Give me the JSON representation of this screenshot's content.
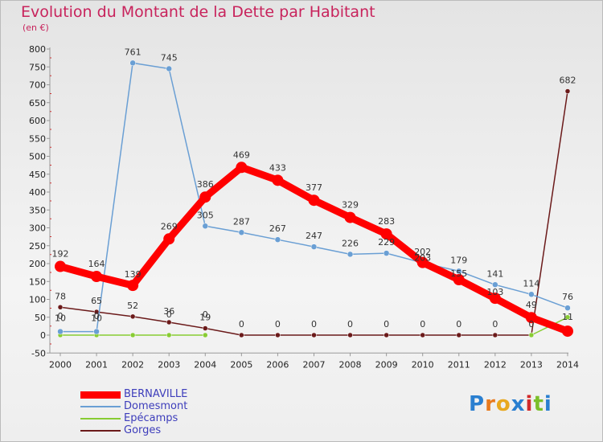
{
  "title": "Evolution du Montant de la Dette par Habitant",
  "subtitle": "(en €)",
  "logo": {
    "text": "Proxiti"
  },
  "chart_data": {
    "type": "line",
    "x": [
      "2000",
      "2001",
      "2002",
      "2003",
      "2004",
      "2005",
      "2006",
      "2007",
      "2008",
      "2009",
      "2010",
      "2011",
      "2012",
      "2013",
      "2014"
    ],
    "ylim": [
      -50,
      800
    ],
    "yticks": [
      -50,
      0,
      50,
      100,
      150,
      200,
      250,
      300,
      350,
      400,
      450,
      500,
      550,
      600,
      650,
      700,
      750,
      800
    ],
    "grid": false,
    "legend_position": "bottom-left",
    "series": [
      {
        "name": "BERNAVILLE",
        "color": "#ff0000",
        "stroke": 9,
        "marker": 7,
        "values": [
          192,
          164,
          139,
          269,
          386,
          469,
          433,
          377,
          329,
          283,
          203,
          155,
          103,
          49,
          11
        ],
        "labels": [
          "192",
          "164",
          "139",
          "269",
          "386",
          "469",
          "433",
          "377",
          "329",
          "283",
          "203",
          "155",
          "103",
          "49",
          "11"
        ],
        "label_dy": [
          -12,
          -12,
          -10,
          -12,
          -12,
          -12,
          -12,
          -12,
          -12,
          -12,
          -2,
          -4,
          -4,
          -12,
          -14
        ]
      },
      {
        "name": "Domesmont",
        "color": "#6a9fd4",
        "stroke": 1.5,
        "marker": 3.5,
        "values": [
          10,
          10,
          761,
          745,
          305,
          287,
          267,
          247,
          226,
          229,
          202,
          179,
          141,
          114,
          76
        ],
        "labels": [
          "10",
          "10",
          "761",
          "745",
          "305",
          "287",
          "267",
          "247",
          "226",
          "229",
          "202",
          "179",
          "141",
          "114",
          "76"
        ],
        "label_dy": [
          -13,
          -13,
          -10,
          -10,
          -10,
          -10,
          -10,
          -10,
          -10,
          -10,
          -10,
          -10,
          -10,
          -10,
          -10
        ]
      },
      {
        "name": "Epécamps",
        "color": "#88cc33",
        "stroke": 1.5,
        "marker": 3,
        "values": [
          0,
          0,
          0,
          0,
          0,
          null,
          null,
          null,
          null,
          null,
          null,
          null,
          null,
          0,
          50
        ],
        "labels": [
          "0",
          "0",
          "",
          "0",
          "0",
          "",
          "",
          "",
          "",
          "",
          "",
          "",
          "",
          "",
          ""
        ],
        "label_dy": [
          -20,
          -20,
          0,
          -22,
          -22,
          0,
          0,
          0,
          0,
          0,
          0,
          0,
          0,
          0,
          0
        ]
      },
      {
        "name": "Gorges",
        "color": "#6b1a1a",
        "stroke": 1.5,
        "marker": 3,
        "values": [
          78,
          65,
          52,
          36,
          19,
          0,
          0,
          0,
          0,
          0,
          0,
          0,
          0,
          0,
          682
        ],
        "labels": [
          "78",
          "65",
          "52",
          "36",
          "19",
          "0",
          "0",
          "0",
          "0",
          "0",
          "0",
          "0",
          "0",
          "0",
          "682"
        ],
        "label_dy": [
          -10,
          -10,
          -10,
          -10,
          -10,
          -10,
          -10,
          -10,
          -10,
          -10,
          -10,
          -10,
          -10,
          -10,
          -10
        ]
      }
    ]
  }
}
